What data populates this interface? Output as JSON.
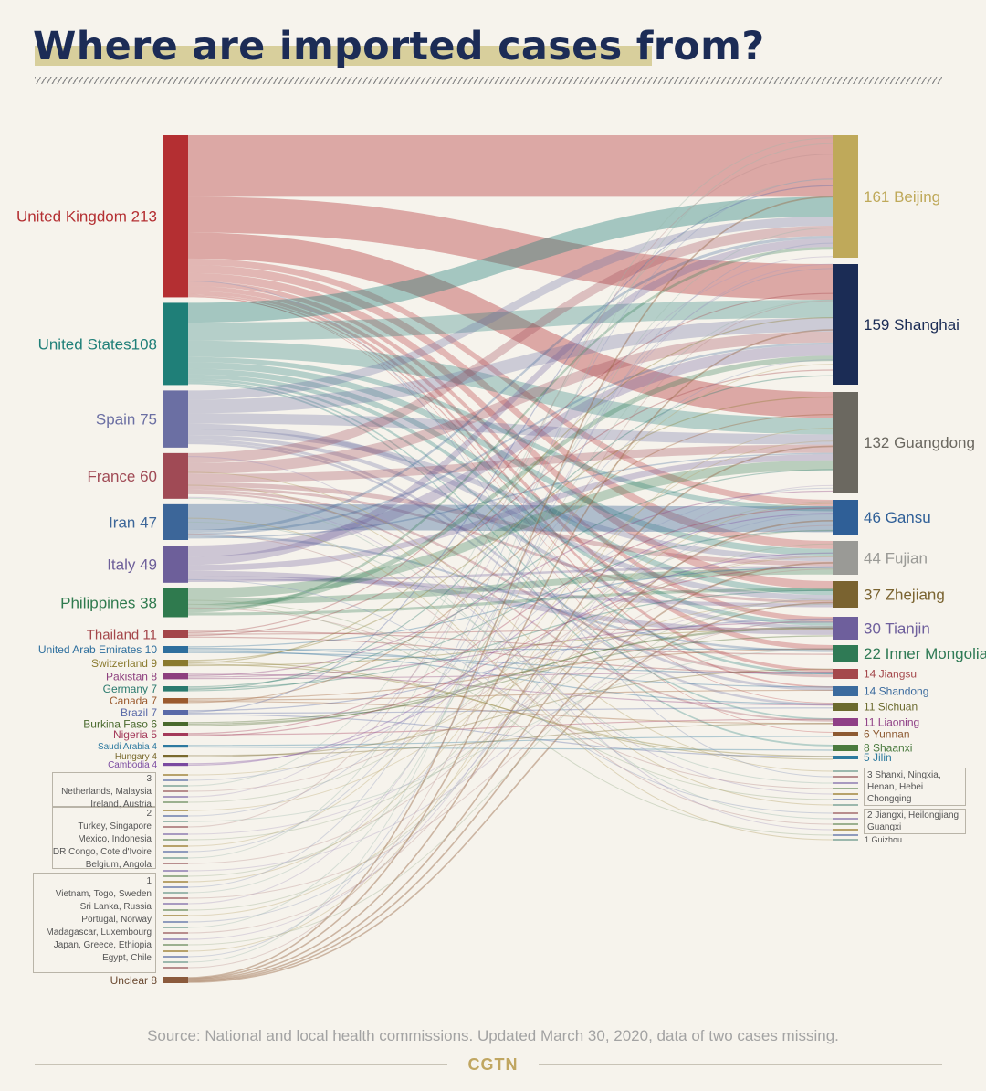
{
  "title": "Where are imported cases from?",
  "source": "Source: National and local health commissions. Updated March 30, 2020, data of two cases missing.",
  "brand": "CGTN",
  "chart_data": {
    "type": "sankey",
    "sources": [
      {
        "label": "United Kingdom 213",
        "value": 213,
        "color": "#b42f32"
      },
      {
        "label": "United States108",
        "value": 108,
        "color": "#1f7f78"
      },
      {
        "label": "Spain 75",
        "value": 75,
        "color": "#6b6fa3"
      },
      {
        "label": "France 60",
        "value": 60,
        "color": "#a04a55"
      },
      {
        "label": "Iran 47",
        "value": 47,
        "color": "#3c6699"
      },
      {
        "label": "Italy 49",
        "value": 49,
        "color": "#6d5f9a"
      },
      {
        "label": "Philippines 38",
        "value": 38,
        "color": "#2f7a4e"
      },
      {
        "label": "Thailand 11",
        "value": 11,
        "color": "#a4464a"
      },
      {
        "label": "United Arab Emirates 10",
        "value": 10,
        "color": "#2e6f9e"
      },
      {
        "label": "Switzerland 9",
        "value": 9,
        "color": "#8a7a2e"
      },
      {
        "label": "Pakistan 8",
        "value": 8,
        "color": "#8d3f7e"
      },
      {
        "label": "Germany 7",
        "value": 7,
        "color": "#2a7a6e"
      },
      {
        "label": "Canada 7",
        "value": 7,
        "color": "#9b5a2e"
      },
      {
        "label": "Brazil 7",
        "value": 7,
        "color": "#5a6aa8"
      },
      {
        "label": "Burkina Faso 6",
        "value": 6,
        "color": "#4a6a2e"
      },
      {
        "label": "Nigeria 5",
        "value": 5,
        "color": "#a43a5a"
      },
      {
        "label": "Saudi Arabia 4",
        "value": 4,
        "color": "#2e7aa0"
      },
      {
        "label": "Hungary 4",
        "value": 4,
        "color": "#7a6a2e"
      },
      {
        "label": "Cambodia 4",
        "value": 4,
        "color": "#7a4aa0"
      }
    ],
    "source_groups": [
      {
        "value": "3",
        "names": [
          "Netherlands, Malaysia",
          "Ireland, Austria"
        ]
      },
      {
        "value": "2",
        "names": [
          "Turkey, Singapore",
          "Mexico, Indonesia",
          "DR Congo, Cote d'Ivoire",
          "Belgium, Angola"
        ]
      },
      {
        "value": "1",
        "names": [
          "Vietnam, Togo, Sweden",
          "Sri Lanka, Russia",
          "Portugal, Norway",
          "Madagascar, Luxembourg",
          "Japan, Greece, Ethiopia",
          "Egypt, Chile"
        ]
      }
    ],
    "unclear": {
      "label": "Unclear 8",
      "value": 8,
      "color": "#8b5a3c"
    },
    "targets": [
      {
        "label": "161 Beijing",
        "value": 161,
        "color": "#bfa95a"
      },
      {
        "label": "159 Shanghai",
        "value": 159,
        "color": "#1b2c55"
      },
      {
        "label": "132 Guangdong",
        "value": 132,
        "color": "#6b6860"
      },
      {
        "label": "46 Gansu",
        "value": 46,
        "color": "#2f5f97"
      },
      {
        "label": "44 Fujian",
        "value": 44,
        "color": "#9a9a96"
      },
      {
        "label": "37 Zhejiang",
        "value": 37,
        "color": "#7a6330"
      },
      {
        "label": "30 Tianjin",
        "value": 30,
        "color": "#6e5f9c"
      },
      {
        "label": "22 Inner Mongolia",
        "value": 22,
        "color": "#2f7a55"
      },
      {
        "label": "14 Jiangsu",
        "value": 14,
        "color": "#a4484c"
      },
      {
        "label": "14 Shandong",
        "value": 14,
        "color": "#3b6b9e"
      },
      {
        "label": "11 Sichuan",
        "value": 11,
        "color": "#6b6a2e"
      },
      {
        "label": "11 Liaoning",
        "value": 11,
        "color": "#8f3f86"
      },
      {
        "label": "6 Yunnan",
        "value": 6,
        "color": "#8d5a32"
      },
      {
        "label": "8 Shaanxi",
        "value": 8,
        "color": "#4a7a3e"
      },
      {
        "label": "5 Jilin",
        "value": 5,
        "color": "#2e7a9e"
      }
    ],
    "target_groups": [
      {
        "names": [
          "3 Shanxi, Ningxia,",
          "Henan, Hebei",
          "Chongqing"
        ]
      },
      {
        "names": [
          "2 Jiangxi, Heilongjiang",
          "Guangxi"
        ]
      }
    ],
    "target_single": "1 Guizhou"
  }
}
